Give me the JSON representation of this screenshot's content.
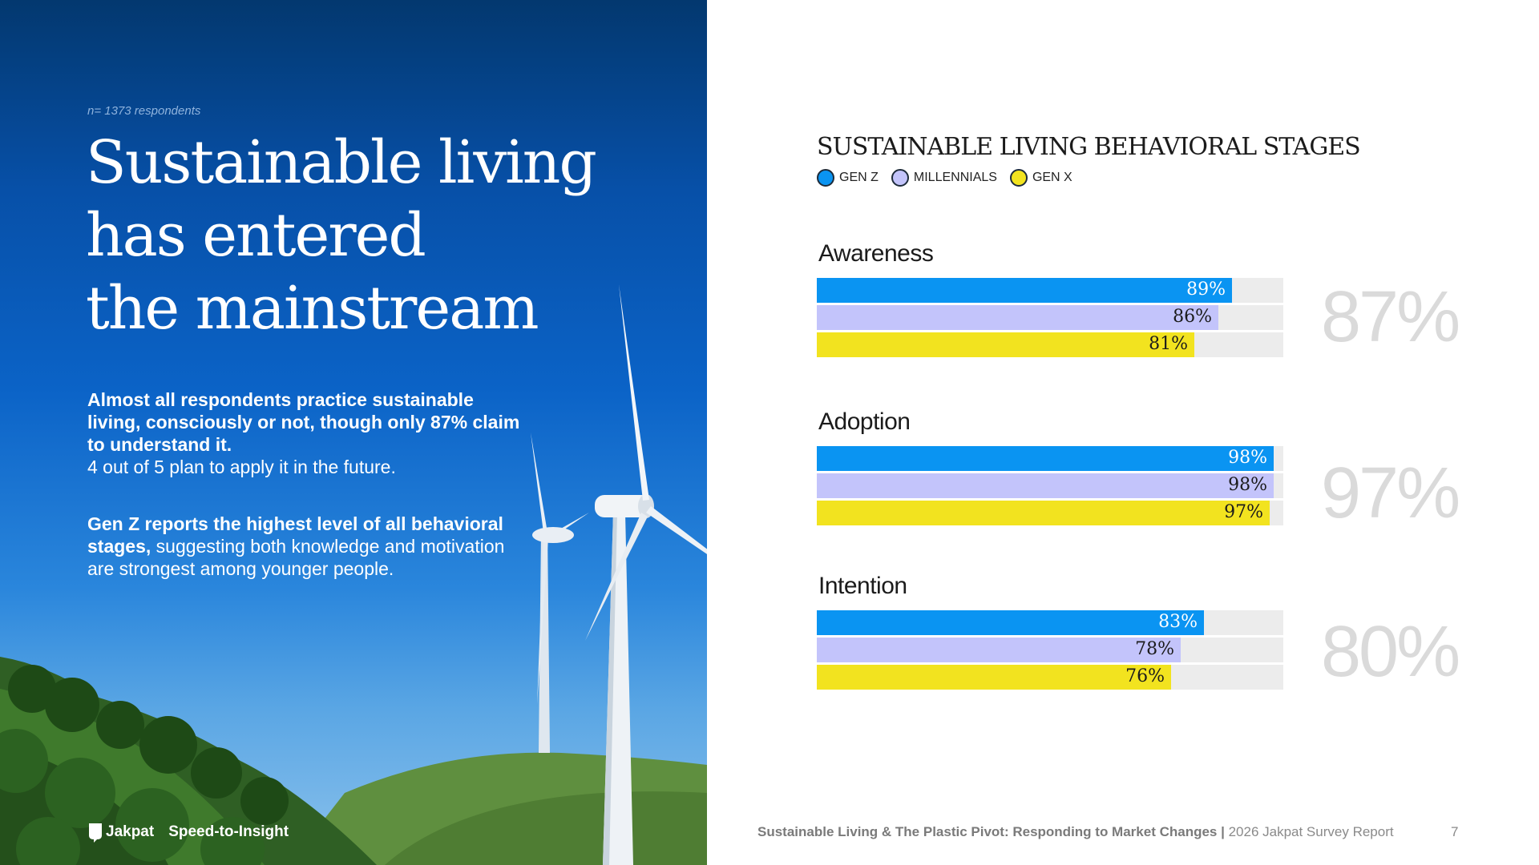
{
  "left": {
    "respondents": "n= 1373 respondents",
    "headline": [
      "Sustainable living",
      "has entered",
      "the mainstream"
    ],
    "para1": {
      "bold": "Almost all respondents practice sustainable living, consciously or not, though only 87% claim to understand it.",
      "regular": "4 out of 5 plan to apply it in the future."
    },
    "para2": {
      "bold": "Gen Z reports the highest level of all behavioral stages,",
      "regular": " suggesting both knowledge and motivation are strongest among younger people."
    },
    "brand": {
      "name": "Jakpat",
      "tagline": "Speed-to-Insight"
    }
  },
  "chart_data": {
    "type": "bar",
    "orientation": "horizontal",
    "title": "SUSTAINABLE LIVING BEHAVIORAL STAGES",
    "xlim": [
      0,
      100
    ],
    "legend_position": "top-left",
    "legend": [
      {
        "name": "GEN Z",
        "color": "#0a94f2"
      },
      {
        "name": "MILLENNIALS",
        "color": "#c3c4fb"
      },
      {
        "name": "GEN X",
        "color": "#f2e31f"
      }
    ],
    "stages": [
      {
        "label": "Awareness",
        "overall": "87%",
        "values": [
          89,
          86,
          81
        ]
      },
      {
        "label": "Adoption",
        "overall": "97%",
        "values": [
          98,
          98,
          97
        ]
      },
      {
        "label": "Intention",
        "overall": "80%",
        "values": [
          83,
          78,
          76
        ]
      }
    ],
    "value_colors": [
      "#ffffff",
      "#1b1b1b",
      "#1b1b1b"
    ]
  },
  "footer": {
    "bold": "Sustainable Living & The Plastic Pivot: Responding to Market Changes |",
    "regular": " 2026 Jakpat Survey Report",
    "page": "7"
  }
}
